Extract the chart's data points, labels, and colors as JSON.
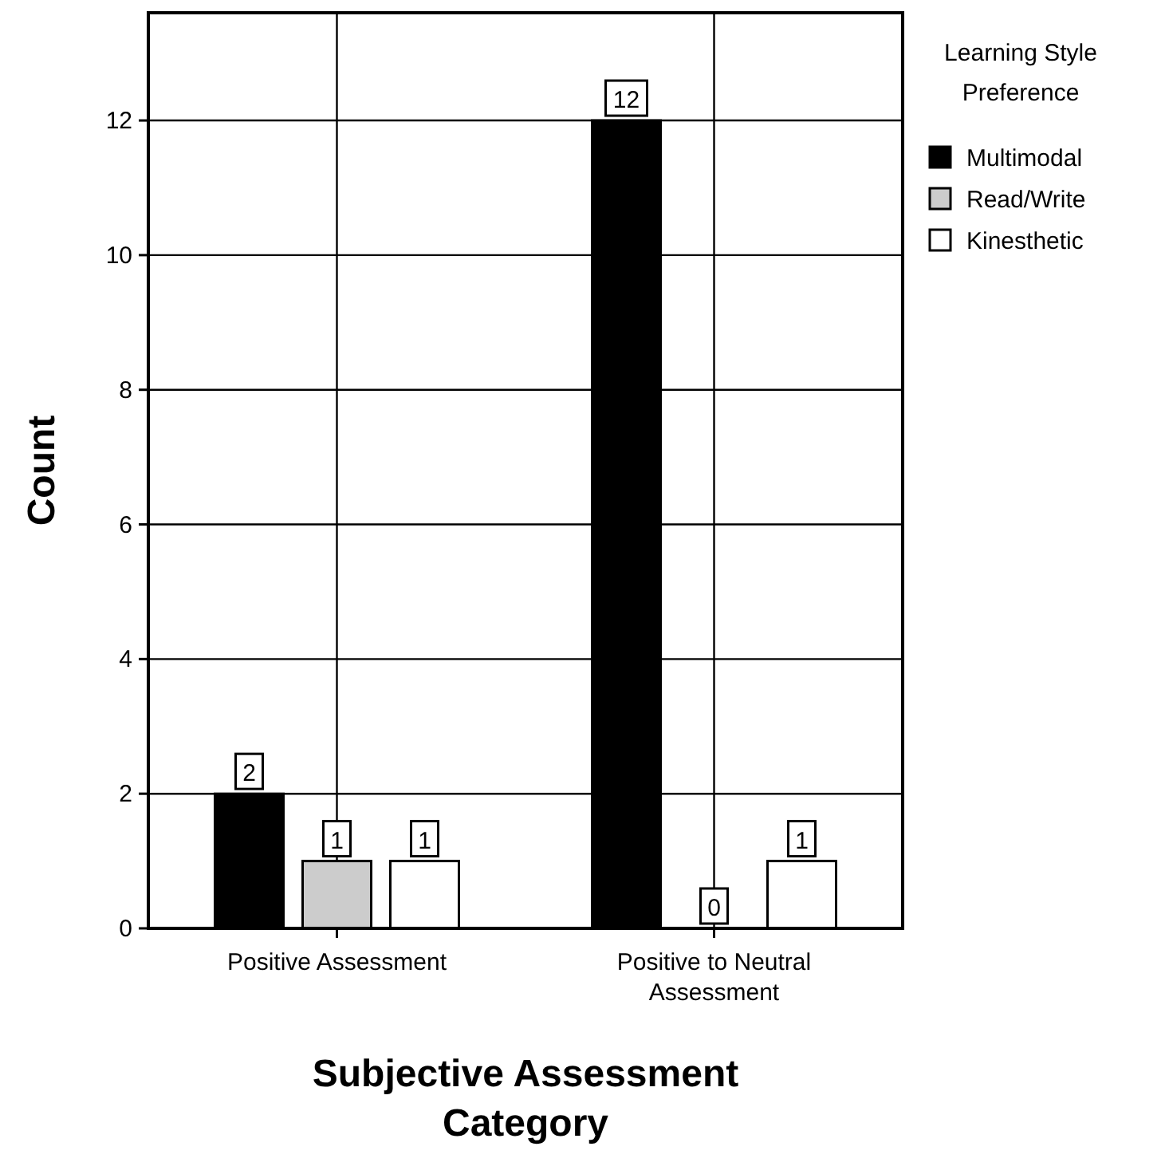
{
  "chart_data": {
    "type": "bar",
    "xlabel": "Subjective Assessment Category",
    "ylabel": "Count",
    "legend_title": "Learning Style Preference",
    "categories": [
      "Positive Assessment",
      "Positive to Neutral Assessment"
    ],
    "series": [
      {
        "name": "Multimodal",
        "color": "#000000",
        "values": [
          2,
          12
        ]
      },
      {
        "name": "Read/Write",
        "color": "#cccccc",
        "values": [
          1,
          0
        ]
      },
      {
        "name": "Kinesthetic",
        "color": "#ffffff",
        "values": [
          1,
          1
        ]
      }
    ],
    "ylim": [
      0,
      13.6
    ],
    "yticks": [
      0,
      2,
      4,
      6,
      8,
      10,
      12
    ],
    "grid": true,
    "legend": "top right",
    "data_labels": true
  }
}
